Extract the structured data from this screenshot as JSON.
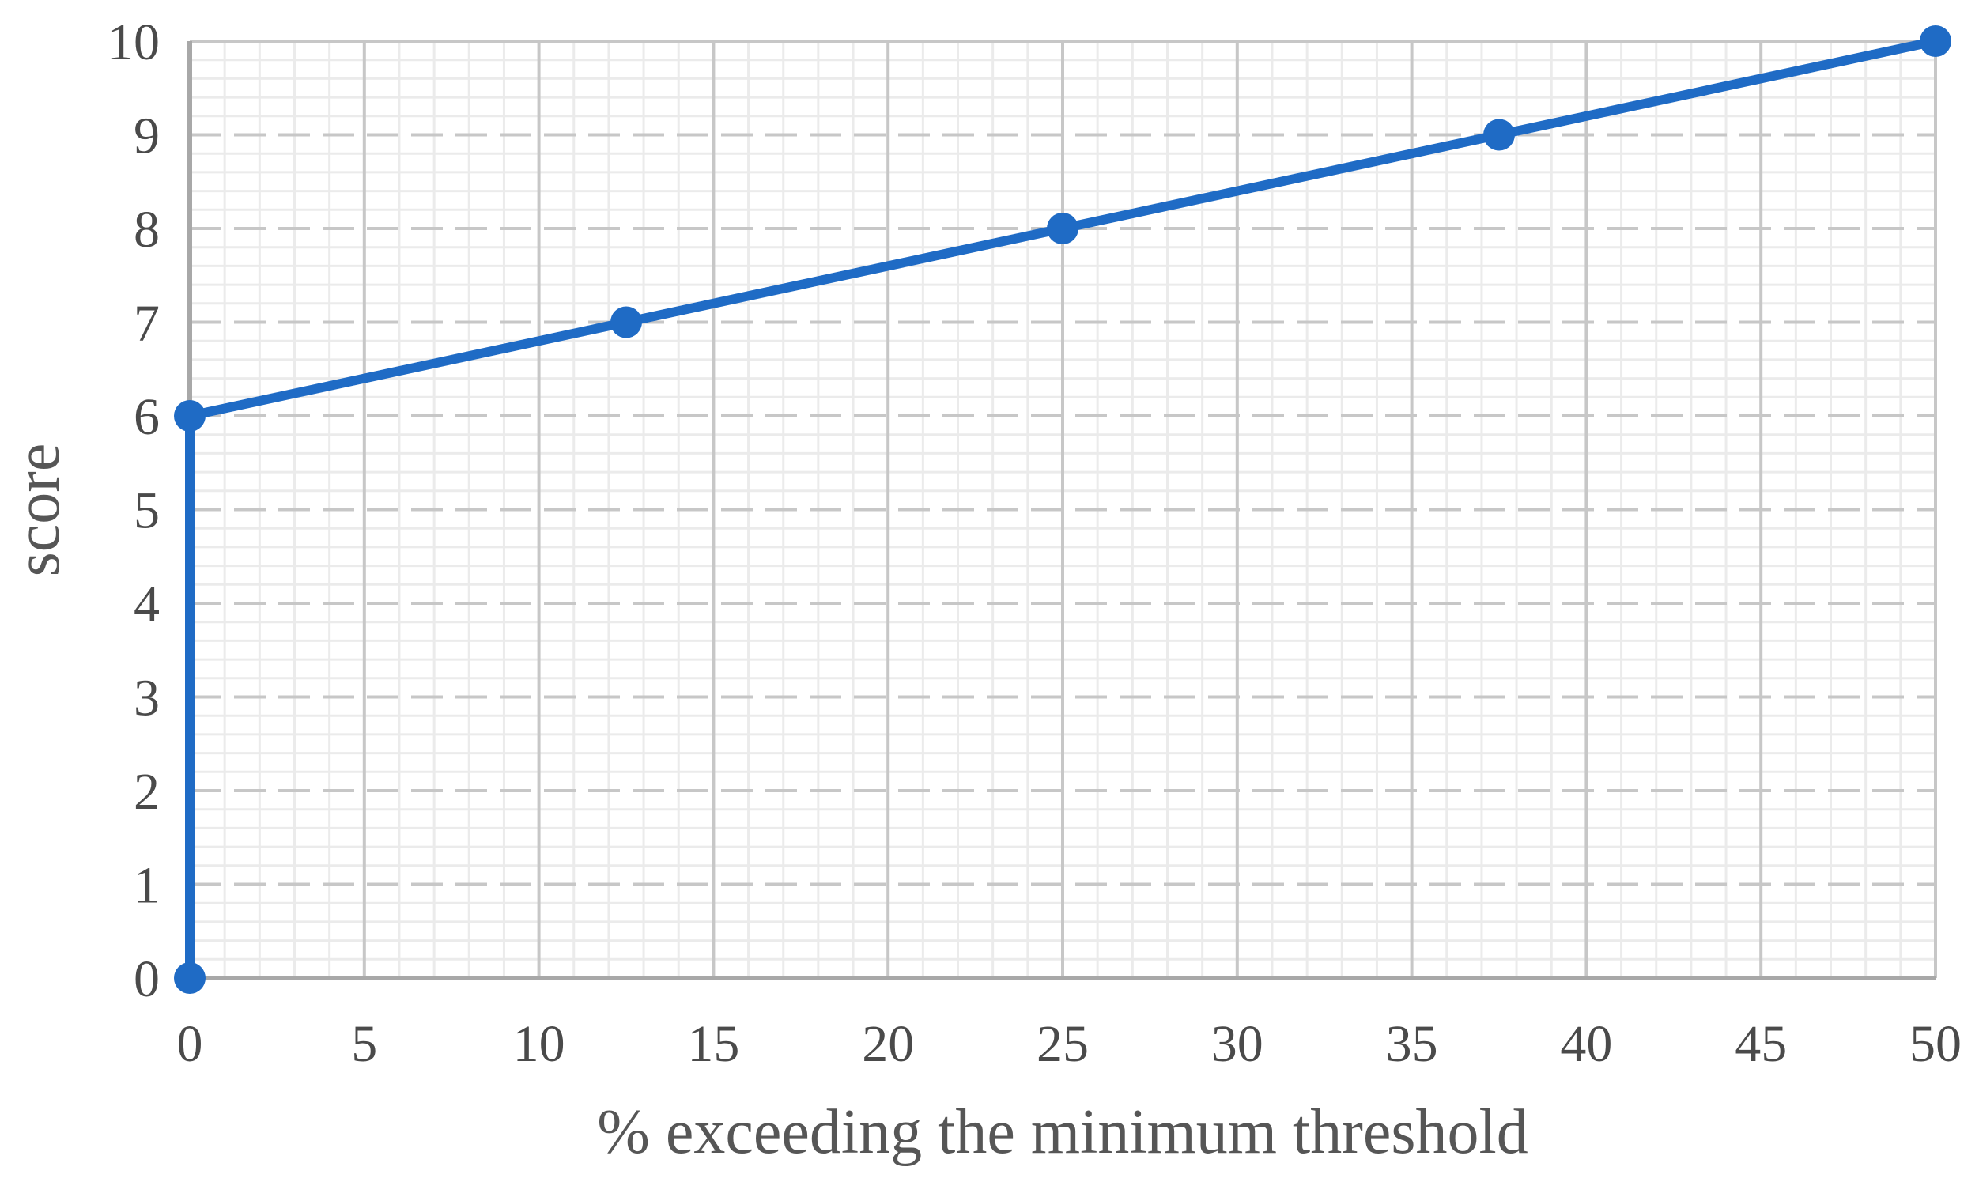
{
  "chart_data": {
    "type": "line",
    "title": "",
    "xlabel": "% exceeding the minimum threshold",
    "ylabel": "score",
    "series": [
      {
        "points": [
          [
            0,
            0
          ],
          [
            0,
            6
          ],
          [
            12.5,
            7
          ],
          [
            25,
            8
          ],
          [
            37.5,
            9
          ],
          [
            50,
            10
          ]
        ],
        "marker": "circle"
      }
    ],
    "xlim": [
      0,
      50
    ],
    "ylim": [
      0,
      10
    ],
    "x_ticks": [
      0,
      5,
      10,
      15,
      20,
      25,
      30,
      35,
      40,
      45,
      50
    ],
    "y_ticks": [
      0,
      1,
      2,
      3,
      4,
      5,
      6,
      7,
      8,
      9,
      10
    ],
    "x_minor_step": 1,
    "y_minor_step": 0.2,
    "grid": {
      "major": true,
      "minor": true,
      "major_horizontal_style": "dashed",
      "major_vertical_style": "solid"
    },
    "legend_position": "none",
    "colors": {
      "line": "#1f6bc5",
      "marker": "#1f6bc5",
      "major_grid": "#c7c7c7",
      "minor_grid": "#ebebeb",
      "axis_line": "#a8a8a8",
      "tick_label": "#4a4a4a",
      "axis_title": "#565656",
      "background": "#ffffff"
    }
  }
}
